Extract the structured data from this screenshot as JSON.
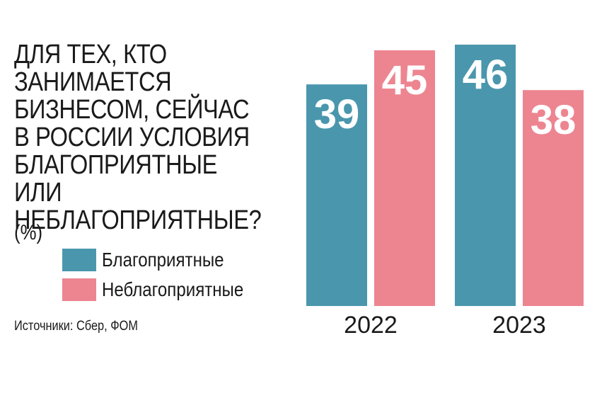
{
  "title": "ДЛЯ ТЕХ, КТО\nЗАНИМАЕТСЯ\nБИЗНЕСОМ, СЕЙЧАС\nВ РОССИИ УСЛОВИЯ\nБЛАГОПРИЯТНЫЕ ИЛИ\nНЕБЛАГОПРИЯТНЫЕ?",
  "unit": "(%)",
  "source": "Источники: Сбер, ФОМ",
  "colors": {
    "favorable": "#4a97ad",
    "unfavorable": "#ed8591"
  },
  "chart_data": {
    "type": "bar",
    "title": "ДЛЯ ТЕХ, КТО ЗАНИМАЕТСЯ БИЗНЕСОМ, СЕЙЧАС В РОССИИ УСЛОВИЯ БЛАГОПРИЯТНЫЕ ИЛИ НЕБЛАГОПРИЯТНЫЕ?",
    "unit": "(%)",
    "categories": [
      "2022",
      "2023"
    ],
    "series": [
      {
        "name": "Благоприятные",
        "values": [
          39,
          46
        ]
      },
      {
        "name": "Неблагоприятные",
        "values": [
          45,
          38
        ]
      }
    ],
    "ylim": [
      0,
      46
    ],
    "grid": false,
    "legend": "left"
  }
}
